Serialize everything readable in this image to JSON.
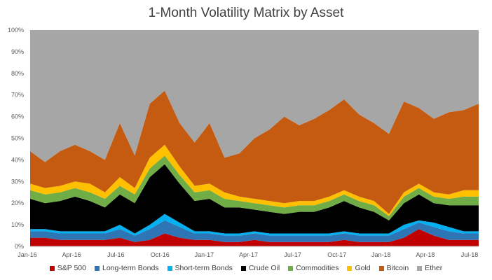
{
  "chart_data": {
    "type": "area",
    "stacked": true,
    "title": "1-Month Volatility Matrix by Asset",
    "xlabel": "",
    "ylabel": "",
    "ylim": [
      0,
      100
    ],
    "y_ticks": [
      "0%",
      "10%",
      "20%",
      "30%",
      "40%",
      "50%",
      "60%",
      "70%",
      "80%",
      "90%",
      "100%"
    ],
    "x_ticks": [
      "Jan-16",
      "Apr-16",
      "Jul-16",
      "Oct-16",
      "Jan-17",
      "Apr-17",
      "Jul-17",
      "Oct-17",
      "Jan-18",
      "Apr-18",
      "Jul-18"
    ],
    "x": [
      "2016-01",
      "2016-02",
      "2016-03",
      "2016-04",
      "2016-05",
      "2016-06",
      "2016-07",
      "2016-08",
      "2016-09",
      "2016-10",
      "2016-11",
      "2016-12",
      "2017-01",
      "2017-02",
      "2017-03",
      "2017-04",
      "2017-05",
      "2017-06",
      "2017-07",
      "2017-08",
      "2017-09",
      "2017-10",
      "2017-11",
      "2017-12",
      "2018-01",
      "2018-02",
      "2018-03",
      "2018-04",
      "2018-05",
      "2018-06",
      "2018-07"
    ],
    "legend_position": "bottom",
    "grid": false,
    "series": [
      {
        "name": "S&P 500",
        "color": "#c00000",
        "values": [
          4,
          4,
          3,
          3,
          3,
          3,
          4,
          2,
          3,
          6,
          4,
          3,
          3,
          2,
          2,
          3,
          2,
          2,
          2,
          2,
          2,
          3,
          2,
          2,
          2,
          4,
          8,
          5,
          3,
          3,
          3
        ]
      },
      {
        "name": "Long-term Bonds",
        "color": "#2e75b6",
        "values": [
          3,
          3,
          3,
          3,
          3,
          3,
          4,
          3,
          5,
          6,
          5,
          3,
          3,
          3,
          3,
          3,
          3,
          3,
          3,
          3,
          3,
          3,
          3,
          3,
          3,
          4,
          3,
          4,
          4,
          3,
          3
        ]
      },
      {
        "name": "Short-term Bonds",
        "color": "#00b0f0",
        "values": [
          1,
          1,
          1,
          1,
          1,
          1,
          2,
          1,
          2,
          3,
          2,
          1,
          1,
          1,
          1,
          1,
          1,
          1,
          1,
          1,
          1,
          1,
          1,
          1,
          1,
          2,
          1,
          2,
          2,
          1,
          1
        ]
      },
      {
        "name": "Crude Oil",
        "color": "#000000",
        "values": [
          14,
          12,
          14,
          16,
          14,
          11,
          14,
          14,
          22,
          23,
          18,
          14,
          15,
          12,
          12,
          10,
          10,
          9,
          10,
          10,
          12,
          14,
          12,
          10,
          6,
          10,
          12,
          9,
          10,
          12,
          12
        ]
      },
      {
        "name": "Commodities",
        "color": "#70ad47",
        "values": [
          4,
          4,
          4,
          4,
          4,
          4,
          4,
          4,
          4,
          4,
          4,
          4,
          4,
          4,
          3,
          3,
          3,
          3,
          3,
          3,
          3,
          3,
          3,
          3,
          2,
          3,
          3,
          3,
          3,
          4,
          4
        ]
      },
      {
        "name": "Gold",
        "color": "#ffc000",
        "values": [
          3,
          3,
          3,
          3,
          4,
          3,
          4,
          3,
          5,
          5,
          4,
          3,
          3,
          3,
          2,
          2,
          2,
          2,
          2,
          2,
          2,
          2,
          2,
          2,
          1,
          2,
          2,
          2,
          2,
          3,
          3
        ]
      },
      {
        "name": "Bitcoin",
        "color": "#c55a11",
        "values": [
          15,
          12,
          16,
          17,
          15,
          15,
          25,
          15,
          25,
          25,
          20,
          20,
          28,
          16,
          20,
          28,
          33,
          40,
          35,
          38,
          40,
          42,
          38,
          36,
          37,
          42,
          35,
          34,
          38,
          37,
          40
        ]
      },
      {
        "name": "Ether",
        "color": "#a6a6a6",
        "values": [
          56,
          61,
          56,
          53,
          56,
          60,
          43,
          58,
          34,
          28,
          43,
          52,
          43,
          59,
          57,
          50,
          46,
          40,
          44,
          41,
          37,
          32,
          39,
          43,
          48,
          33,
          36,
          41,
          38,
          37,
          34
        ]
      }
    ]
  }
}
